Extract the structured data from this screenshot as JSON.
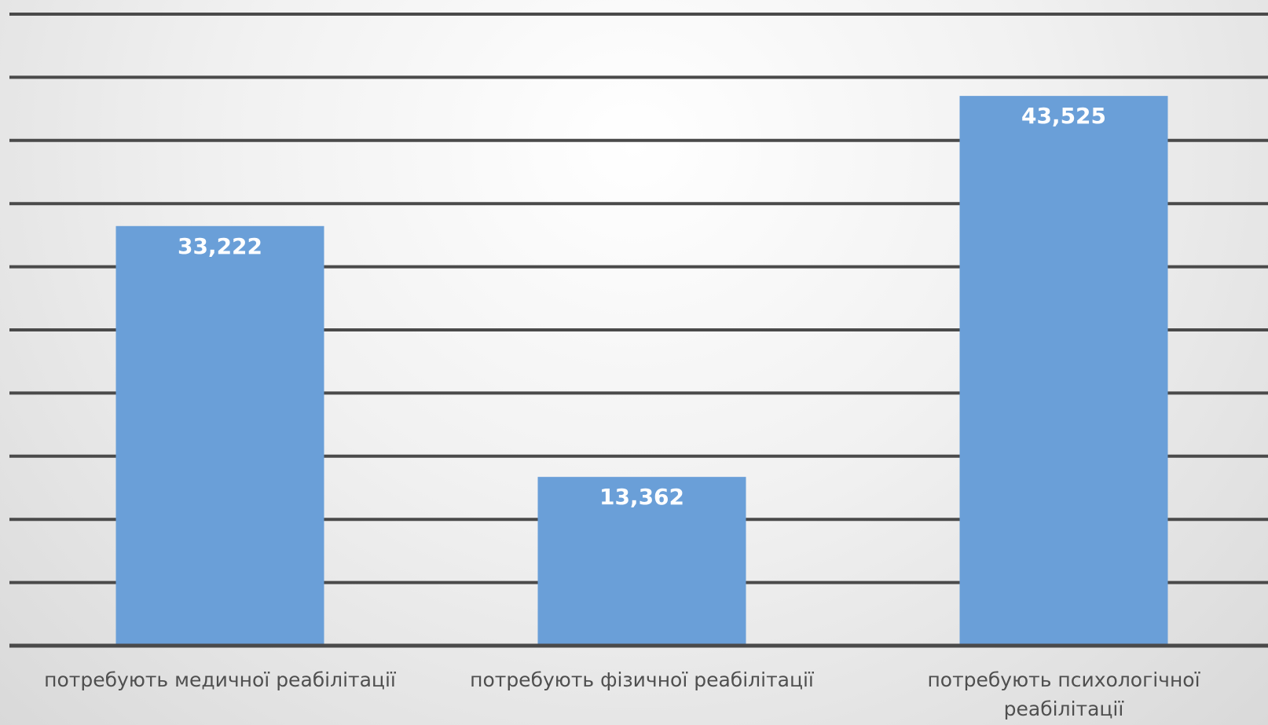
{
  "chart_data": {
    "type": "bar",
    "categories": [
      "потребують медичної реабілітації",
      "потребують фізичної реабілітації",
      "потребують психологічної реабілітації"
    ],
    "values": [
      33.222,
      13.362,
      43.525
    ],
    "value_labels": [
      "33,222",
      "13,362",
      "43,525"
    ],
    "ylim": [
      0,
      50
    ],
    "grid": true,
    "colors": {
      "bar": "#6a9fd8",
      "gridline": "#4a4a4a",
      "label_text": "#4f4f4f",
      "value_text": "#ffffff"
    }
  }
}
